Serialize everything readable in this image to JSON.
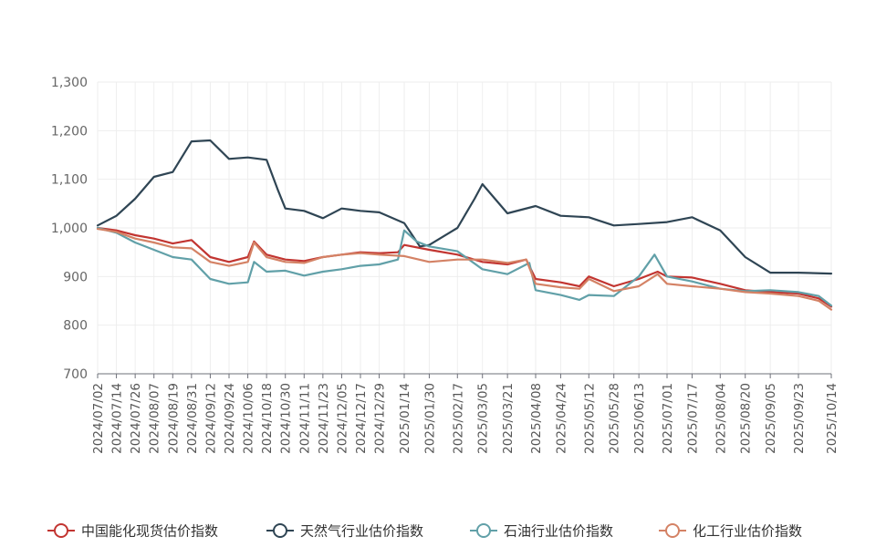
{
  "chart_data": {
    "type": "line",
    "title": "",
    "xlabel": "",
    "ylabel": "",
    "ylim": [
      700,
      1300
    ],
    "yticks": [
      700,
      800,
      900,
      1000,
      1100,
      1200,
      1300
    ],
    "ytick_labels": [
      "700",
      "800",
      "900",
      "1,000",
      "1,100",
      "1,200",
      "1,300"
    ],
    "x_start": "2024/07/02",
    "x_end": "2025/10/14",
    "x_ticks": [
      "2024/07/02",
      "2024/07/14",
      "2024/07/26",
      "2024/08/07",
      "2024/08/19",
      "2024/08/31",
      "2024/09/12",
      "2024/09/24",
      "2024/10/06",
      "2024/10/18",
      "2024/10/30",
      "2024/11/11",
      "2024/11/23",
      "2024/12/05",
      "2024/12/17",
      "2024/12/29",
      "2025/01/14",
      "2025/01/30",
      "2025/02/17",
      "2025/03/05",
      "2025/03/21",
      "2025/04/08",
      "2025/04/24",
      "2025/05/12",
      "2025/05/28",
      "2025/06/13",
      "2025/07/01",
      "2025/07/17",
      "2025/08/04",
      "2025/08/20",
      "2025/09/05",
      "2025/09/23",
      "2025/10/14"
    ],
    "grid": true,
    "legend_position": "bottom",
    "series": [
      {
        "name": "中国能化现货估价指数",
        "color": "#c23531",
        "points": [
          [
            "2024/07/02",
            1000
          ],
          [
            "2024/07/14",
            995
          ],
          [
            "2024/07/26",
            985
          ],
          [
            "2024/08/07",
            978
          ],
          [
            "2024/08/19",
            968
          ],
          [
            "2024/08/31",
            975
          ],
          [
            "2024/09/12",
            940
          ],
          [
            "2024/09/24",
            930
          ],
          [
            "2024/10/06",
            940
          ],
          [
            "2024/10/10",
            972
          ],
          [
            "2024/10/18",
            945
          ],
          [
            "2024/10/30",
            935
          ],
          [
            "2024/11/11",
            932
          ],
          [
            "2024/11/23",
            940
          ],
          [
            "2024/12/05",
            945
          ],
          [
            "2024/12/17",
            950
          ],
          [
            "2024/12/29",
            948
          ],
          [
            "2025/01/10",
            950
          ],
          [
            "2025/01/14",
            965
          ],
          [
            "2025/01/30",
            955
          ],
          [
            "2025/02/17",
            945
          ],
          [
            "2025/03/05",
            930
          ],
          [
            "2025/03/21",
            925
          ],
          [
            "2025/04/02",
            935
          ],
          [
            "2025/04/08",
            895
          ],
          [
            "2025/04/24",
            888
          ],
          [
            "2025/05/06",
            880
          ],
          [
            "2025/05/12",
            900
          ],
          [
            "2025/05/28",
            880
          ],
          [
            "2025/06/13",
            895
          ],
          [
            "2025/06/25",
            910
          ],
          [
            "2025/07/01",
            900
          ],
          [
            "2025/07/17",
            898
          ],
          [
            "2025/08/04",
            885
          ],
          [
            "2025/08/20",
            872
          ],
          [
            "2025/09/05",
            868
          ],
          [
            "2025/09/23",
            865
          ],
          [
            "2025/10/06",
            855
          ],
          [
            "2025/10/14",
            838
          ]
        ]
      },
      {
        "name": "天然气行业估价指数",
        "color": "#2f4554",
        "points": [
          [
            "2024/07/02",
            1005
          ],
          [
            "2024/07/14",
            1025
          ],
          [
            "2024/07/26",
            1060
          ],
          [
            "2024/08/07",
            1105
          ],
          [
            "2024/08/19",
            1115
          ],
          [
            "2024/08/31",
            1178
          ],
          [
            "2024/09/12",
            1180
          ],
          [
            "2024/09/24",
            1142
          ],
          [
            "2024/10/06",
            1145
          ],
          [
            "2024/10/18",
            1140
          ],
          [
            "2024/10/25",
            1080
          ],
          [
            "2024/10/30",
            1040
          ],
          [
            "2024/11/11",
            1035
          ],
          [
            "2024/11/23",
            1020
          ],
          [
            "2024/12/05",
            1040
          ],
          [
            "2024/12/17",
            1035
          ],
          [
            "2024/12/29",
            1032
          ],
          [
            "2025/01/14",
            1010
          ],
          [
            "2025/01/24",
            962
          ],
          [
            "2025/01/30",
            965
          ],
          [
            "2025/02/17",
            1000
          ],
          [
            "2025/02/28",
            1060
          ],
          [
            "2025/03/05",
            1090
          ],
          [
            "2025/03/21",
            1030
          ],
          [
            "2025/04/08",
            1045
          ],
          [
            "2025/04/24",
            1025
          ],
          [
            "2025/05/12",
            1022
          ],
          [
            "2025/05/28",
            1005
          ],
          [
            "2025/06/13",
            1008
          ],
          [
            "2025/07/01",
            1012
          ],
          [
            "2025/07/17",
            1022
          ],
          [
            "2025/08/04",
            995
          ],
          [
            "2025/08/20",
            940
          ],
          [
            "2025/09/05",
            908
          ],
          [
            "2025/09/23",
            908
          ],
          [
            "2025/10/14",
            906
          ]
        ]
      },
      {
        "name": "石油行业估价指数",
        "color": "#61a0a8",
        "points": [
          [
            "2024/07/02",
            1000
          ],
          [
            "2024/07/14",
            990
          ],
          [
            "2024/07/26",
            970
          ],
          [
            "2024/08/07",
            955
          ],
          [
            "2024/08/19",
            940
          ],
          [
            "2024/08/31",
            935
          ],
          [
            "2024/09/12",
            895
          ],
          [
            "2024/09/24",
            885
          ],
          [
            "2024/10/06",
            888
          ],
          [
            "2024/10/10",
            930
          ],
          [
            "2024/10/18",
            910
          ],
          [
            "2024/10/30",
            912
          ],
          [
            "2024/11/11",
            902
          ],
          [
            "2024/11/23",
            910
          ],
          [
            "2024/12/05",
            915
          ],
          [
            "2024/12/17",
            922
          ],
          [
            "2024/12/29",
            925
          ],
          [
            "2025/01/10",
            935
          ],
          [
            "2025/01/14",
            995
          ],
          [
            "2025/01/22",
            972
          ],
          [
            "2025/01/30",
            962
          ],
          [
            "2025/02/17",
            952
          ],
          [
            "2025/03/05",
            915
          ],
          [
            "2025/03/21",
            905
          ],
          [
            "2025/04/04",
            928
          ],
          [
            "2025/04/08",
            872
          ],
          [
            "2025/04/24",
            862
          ],
          [
            "2025/05/06",
            852
          ],
          [
            "2025/05/12",
            862
          ],
          [
            "2025/05/28",
            860
          ],
          [
            "2025/06/13",
            900
          ],
          [
            "2025/06/23",
            945
          ],
          [
            "2025/07/01",
            900
          ],
          [
            "2025/07/17",
            890
          ],
          [
            "2025/08/04",
            875
          ],
          [
            "2025/08/20",
            870
          ],
          [
            "2025/09/05",
            872
          ],
          [
            "2025/09/23",
            868
          ],
          [
            "2025/10/06",
            860
          ],
          [
            "2025/10/14",
            840
          ]
        ]
      },
      {
        "name": "化工行业估价指数",
        "color": "#d48265",
        "points": [
          [
            "2024/07/02",
            998
          ],
          [
            "2024/07/14",
            992
          ],
          [
            "2024/07/26",
            978
          ],
          [
            "2024/08/07",
            970
          ],
          [
            "2024/08/19",
            960
          ],
          [
            "2024/08/31",
            958
          ],
          [
            "2024/09/12",
            930
          ],
          [
            "2024/09/24",
            922
          ],
          [
            "2024/10/06",
            930
          ],
          [
            "2024/10/10",
            970
          ],
          [
            "2024/10/18",
            940
          ],
          [
            "2024/10/30",
            930
          ],
          [
            "2024/11/11",
            928
          ],
          [
            "2024/11/23",
            940
          ],
          [
            "2024/12/05",
            945
          ],
          [
            "2024/12/17",
            948
          ],
          [
            "2024/12/29",
            945
          ],
          [
            "2025/01/14",
            942
          ],
          [
            "2025/01/30",
            930
          ],
          [
            "2025/02/17",
            935
          ],
          [
            "2025/03/05",
            935
          ],
          [
            "2025/03/21",
            928
          ],
          [
            "2025/04/02",
            935
          ],
          [
            "2025/04/08",
            885
          ],
          [
            "2025/04/24",
            878
          ],
          [
            "2025/05/06",
            875
          ],
          [
            "2025/05/12",
            895
          ],
          [
            "2025/05/28",
            870
          ],
          [
            "2025/06/13",
            880
          ],
          [
            "2025/06/25",
            905
          ],
          [
            "2025/07/01",
            885
          ],
          [
            "2025/07/17",
            880
          ],
          [
            "2025/08/04",
            875
          ],
          [
            "2025/08/20",
            868
          ],
          [
            "2025/09/05",
            865
          ],
          [
            "2025/09/23",
            860
          ],
          [
            "2025/10/06",
            850
          ],
          [
            "2025/10/14",
            832
          ]
        ]
      }
    ]
  }
}
